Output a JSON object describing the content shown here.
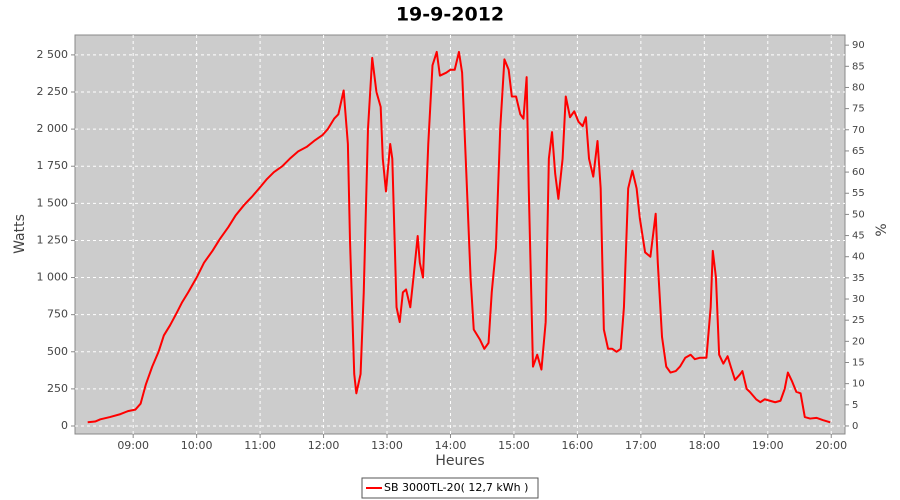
{
  "chart_data": {
    "type": "line",
    "title": "19-9-2012",
    "xlabel": "Heures",
    "ylabel": "Watts",
    "y2label": "%",
    "x": [
      497,
      504,
      509,
      518,
      528,
      535,
      542,
      547,
      552,
      558,
      564,
      569,
      575,
      581,
      586,
      592,
      600,
      607,
      615,
      622,
      630,
      637,
      645,
      653,
      659,
      666,
      673,
      681,
      688,
      696,
      704,
      711,
      719,
      724,
      730,
      734,
      739,
      743,
      745,
      749,
      751,
      755,
      758,
      762,
      766,
      770,
      774,
      776,
      779,
      783,
      785,
      789,
      792,
      795,
      798,
      802,
      805,
      809,
      811,
      814,
      819,
      823,
      827,
      830,
      836,
      840,
      844,
      848,
      851,
      855,
      859,
      862,
      868,
      872,
      876,
      879,
      883,
      887,
      891,
      895,
      898,
      902,
      906,
      909,
      912,
      914,
      918,
      922,
      926,
      930,
      933,
      936,
      939,
      942,
      946,
      949,
      953,
      957,
      961,
      965,
      968,
      971,
      975,
      979,
      982,
      985,
      989,
      993,
      997,
      1001,
      1004,
      1008,
      1012,
      1016,
      1019,
      1024,
      1029,
      1034,
      1036,
      1040,
      1044,
      1048,
      1053,
      1057,
      1062,
      1067,
      1071,
      1076,
      1082,
      1086,
      1088,
      1091,
      1094,
      1098,
      1102,
      1105,
      1109,
      1114,
      1116,
      1120,
      1123,
      1129,
      1133,
      1137,
      1142,
      1147,
      1152,
      1156,
      1159,
      1163,
      1167,
      1171,
      1175,
      1180,
      1186,
      1192,
      1199
    ],
    "series": [
      {
        "name": "SB 3000TL-20( 12,7 kWh )",
        "color": "#ff0000",
        "values": [
          25,
          30,
          45,
          60,
          80,
          100,
          110,
          150,
          280,
          400,
          500,
          610,
          680,
          760,
          830,
          900,
          1000,
          1100,
          1180,
          1260,
          1340,
          1420,
          1490,
          1550,
          1600,
          1660,
          1710,
          1750,
          1800,
          1850,
          1880,
          1920,
          1960,
          2000,
          2070,
          2100,
          2260,
          1900,
          1250,
          350,
          220,
          350,
          900,
          2000,
          2480,
          2250,
          2150,
          1800,
          1580,
          1900,
          1800,
          800,
          700,
          900,
          920,
          800,
          1000,
          1280,
          1100,
          1000,
          1900,
          2430,
          2520,
          2360,
          2380,
          2400,
          2400,
          2520,
          2380,
          1700,
          1000,
          650,
          580,
          520,
          560,
          900,
          1200,
          2000,
          2470,
          2400,
          2220,
          2220,
          2100,
          2070,
          2350,
          1600,
          400,
          480,
          380,
          700,
          1800,
          1980,
          1700,
          1530,
          1800,
          2220,
          2080,
          2120,
          2050,
          2020,
          2080,
          1800,
          1680,
          1920,
          1600,
          650,
          520,
          520,
          500,
          520,
          800,
          1600,
          1720,
          1600,
          1400,
          1170,
          1140,
          1430,
          1100,
          600,
          400,
          360,
          370,
          400,
          460,
          480,
          450,
          460,
          460,
          800,
          1180,
          1000,
          480,
          420,
          470,
          400,
          310,
          350,
          370,
          250,
          230,
          180,
          160,
          180,
          170,
          160,
          170,
          250,
          360,
          300,
          230,
          220,
          60,
          50,
          55,
          40,
          25
        ]
      }
    ],
    "xlim": [
      485,
      1213
    ],
    "xticks": [
      {
        "value": 540,
        "label": "09:00"
      },
      {
        "value": 600,
        "label": "10:00"
      },
      {
        "value": 660,
        "label": "11:00"
      },
      {
        "value": 720,
        "label": "12:00"
      },
      {
        "value": 780,
        "label": "13:00"
      },
      {
        "value": 840,
        "label": "14:00"
      },
      {
        "value": 900,
        "label": "15:00"
      },
      {
        "value": 960,
        "label": "16:00"
      },
      {
        "value": 1020,
        "label": "17:00"
      },
      {
        "value": 1080,
        "label": "18:00"
      },
      {
        "value": 1140,
        "label": "19:00"
      },
      {
        "value": 1200,
        "label": "20:00"
      }
    ],
    "ylim": [
      -54,
      2634
    ],
    "yticks": [
      0,
      250,
      500,
      750,
      {
        "value": 1000,
        "label": "1 000"
      },
      {
        "value": 1250,
        "label": "1 250"
      },
      {
        "value": 1500,
        "label": "1 500"
      },
      {
        "value": 1750,
        "label": "1 750"
      },
      {
        "value": 2000,
        "label": "2 000"
      },
      {
        "value": 2250,
        "label": "2 250"
      },
      {
        "value": 2500,
        "label": "2 500"
      }
    ],
    "y2lim": [
      -1.9,
      92.4
    ],
    "y2ticks": [
      0,
      5,
      10,
      15,
      20,
      25,
      30,
      35,
      40,
      45,
      50,
      55,
      60,
      65,
      70,
      75,
      80,
      85,
      90
    ],
    "grid": true
  }
}
